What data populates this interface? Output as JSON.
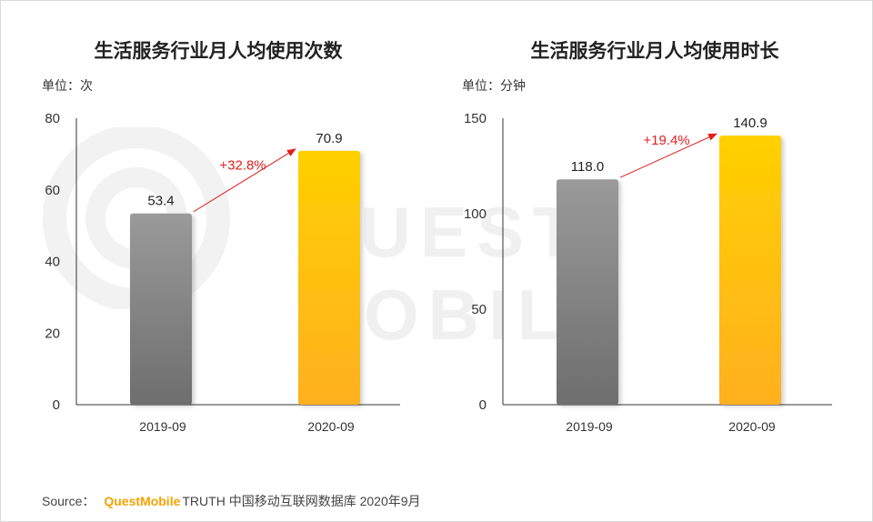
{
  "watermark": {
    "text": "QUEST MOBILE"
  },
  "source": {
    "label": "Source：",
    "brand": "QuestMobile",
    "rest": "TRUTH 中国移动互联网数据库 2020年9月"
  },
  "colors": {
    "gray_top": "#9a9a9a",
    "gray_bottom": "#6e6e6e",
    "gold_top": "#ffd000",
    "gold_bottom": "#ffb020",
    "arrow": "#e02020",
    "axis": "#333333"
  },
  "chart_data": [
    {
      "type": "bar",
      "title": "生活服务行业月人均使用次数",
      "unit": "单位：次",
      "categories": [
        "2019-09",
        "2020-09"
      ],
      "values": [
        53.4,
        70.9
      ],
      "value_labels": [
        "53.4",
        "70.9"
      ],
      "ylim": [
        0,
        80
      ],
      "yticks": [
        0,
        20,
        40,
        60,
        80
      ],
      "growth": "+32.8%"
    },
    {
      "type": "bar",
      "title": "生活服务行业月人均使用时长",
      "unit": "单位：分钟",
      "categories": [
        "2019-09",
        "2020-09"
      ],
      "values": [
        118.0,
        140.9
      ],
      "value_labels": [
        "118.0",
        "140.9"
      ],
      "ylim": [
        0,
        150
      ],
      "yticks": [
        0,
        50,
        100,
        150
      ],
      "growth": "+19.4%"
    }
  ]
}
